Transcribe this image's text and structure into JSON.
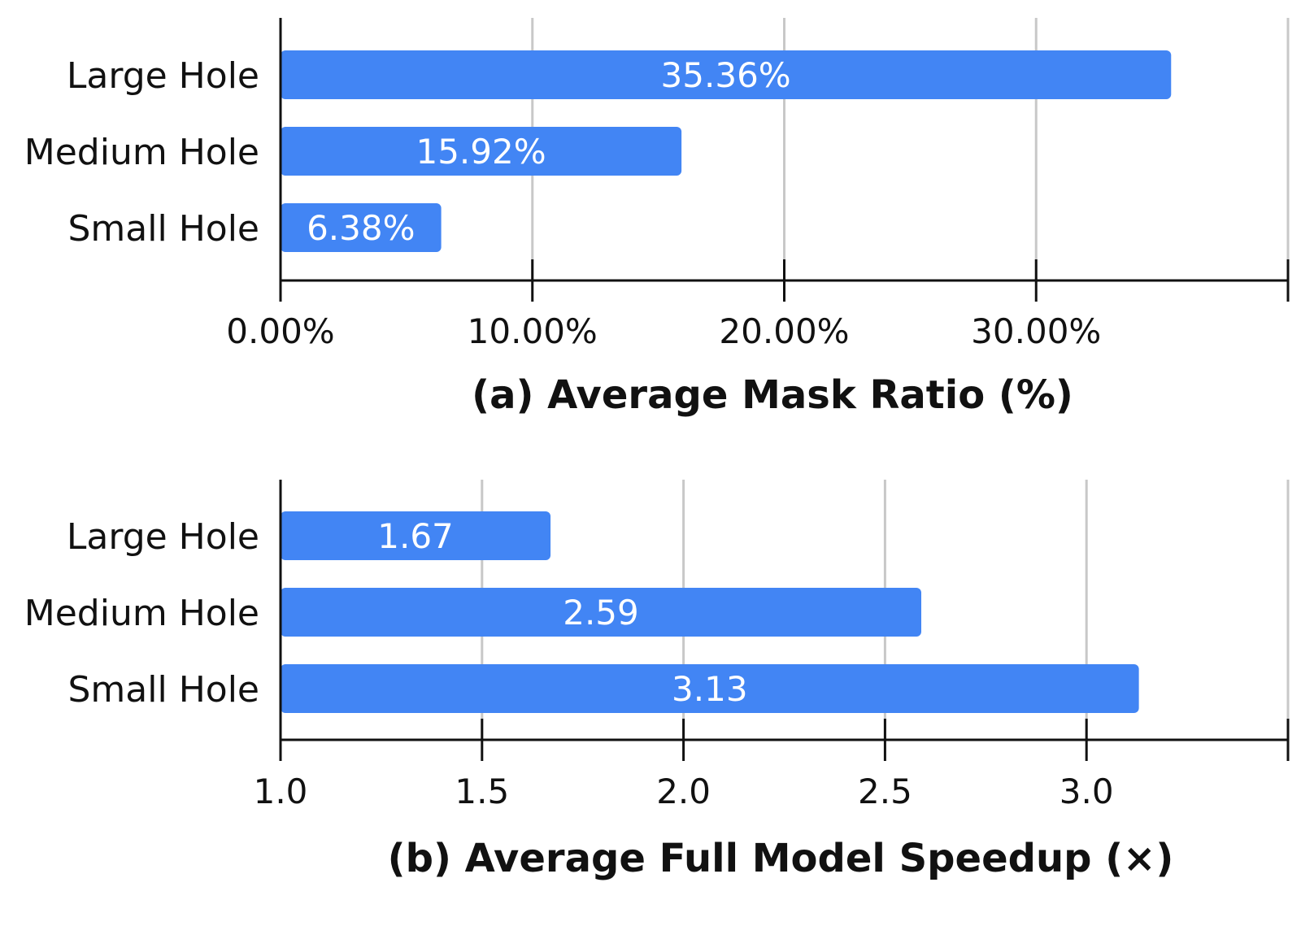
{
  "chart_data": [
    {
      "type": "bar",
      "orientation": "horizontal",
      "title": "(a) Average Mask Ratio (%)",
      "categories": [
        "Large Hole",
        "Medium Hole",
        "Small Hole"
      ],
      "values": [
        35.36,
        15.92,
        6.38
      ],
      "value_labels": [
        "35.36%",
        "15.92%",
        "6.38%"
      ],
      "xlim": [
        0,
        40
      ],
      "ticks": [
        0,
        10,
        20,
        30,
        40
      ],
      "tick_labels": [
        "0.00%",
        "10.00%",
        "20.00%",
        "30.00%"
      ],
      "grid": true,
      "bar_color": "#4285F4",
      "grid_color": "#C8C8C8",
      "axis_color": "#111111"
    },
    {
      "type": "bar",
      "orientation": "horizontal",
      "title": "(b) Average Full Model Speedup (×)",
      "categories": [
        "Large Hole",
        "Medium Hole",
        "Small Hole"
      ],
      "values": [
        1.67,
        2.59,
        3.13
      ],
      "value_labels": [
        "1.67",
        "2.59",
        "3.13"
      ],
      "xlim": [
        1.0,
        3.5
      ],
      "ticks": [
        1.0,
        1.5,
        2.0,
        2.5,
        3.0,
        3.5
      ],
      "tick_labels": [
        "1.0",
        "1.5",
        "2.0",
        "2.5",
        "3.0"
      ],
      "grid": true,
      "bar_color": "#4285F4",
      "grid_color": "#C8C8C8",
      "axis_color": "#111111"
    }
  ]
}
